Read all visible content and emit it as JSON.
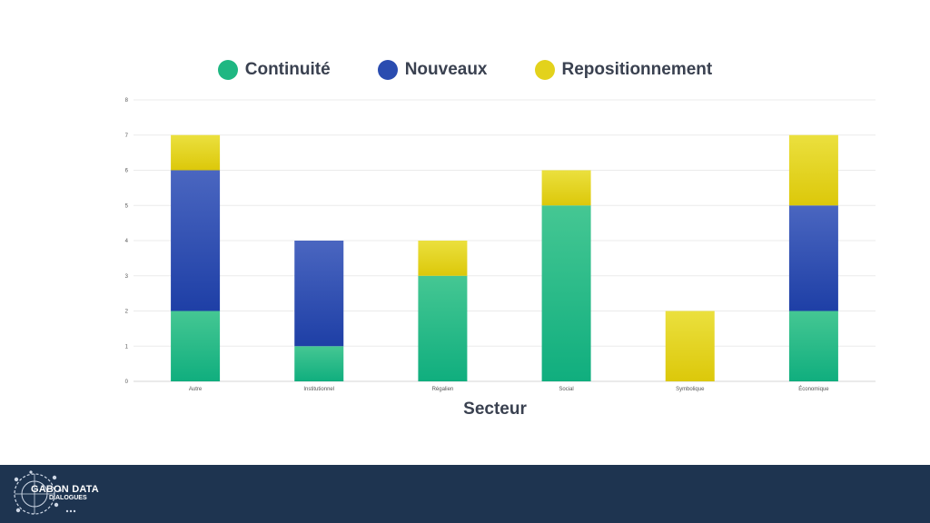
{
  "chart_data": {
    "type": "bar",
    "stacked": true,
    "xlabel": "Secteur",
    "ylabel": "",
    "ylim": [
      0,
      8
    ],
    "yticks": [
      0,
      1,
      2,
      3,
      4,
      5,
      6,
      7,
      8
    ],
    "grid": true,
    "legend_position": "top",
    "categories": [
      "Autre",
      "Institutionnel",
      "Régalien",
      "Social",
      "Symbolique",
      "Économique"
    ],
    "series": [
      {
        "name": "Continuité",
        "color": "#1fb782",
        "values": [
          2,
          1,
          3,
          5,
          0,
          2
        ]
      },
      {
        "name": "Nouveaux",
        "color": "#2a4cb0",
        "values": [
          4,
          3,
          0,
          0,
          0,
          3
        ]
      },
      {
        "name": "Repositionnement",
        "color": "#e3d21c",
        "values": [
          1,
          0,
          1,
          1,
          2,
          2
        ]
      }
    ]
  },
  "branding": {
    "logo_line1": "GABON DATA",
    "logo_line2": "DIALOGUES",
    "footer_color": "#1e3450"
  }
}
